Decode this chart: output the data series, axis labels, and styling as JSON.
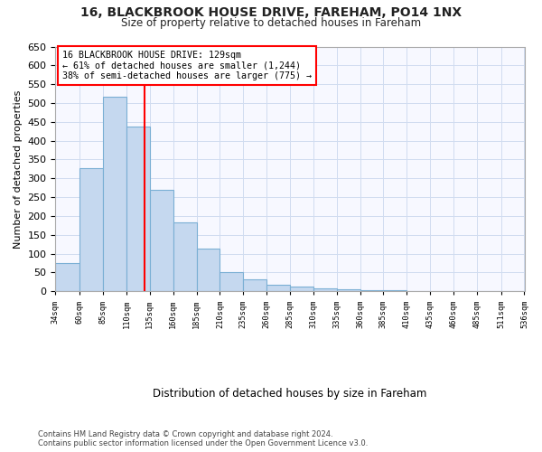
{
  "title1": "16, BLACKBROOK HOUSE DRIVE, FAREHAM, PO14 1NX",
  "title2": "Size of property relative to detached houses in Fareham",
  "xlabel": "Distribution of detached houses by size in Fareham",
  "ylabel": "Number of detached properties",
  "bins": [
    34,
    60,
    85,
    110,
    135,
    160,
    185,
    210,
    235,
    260,
    285,
    310,
    335,
    360,
    385,
    410,
    435,
    460,
    485,
    511,
    536
  ],
  "bar_heights": [
    75,
    328,
    517,
    438,
    270,
    182,
    113,
    50,
    33,
    18,
    13,
    8,
    5,
    3,
    2,
    1,
    1,
    1,
    1,
    1
  ],
  "tick_labels": [
    "34sqm",
    "60sqm",
    "85sqm",
    "110sqm",
    "135sqm",
    "160sqm",
    "185sqm",
    "210sqm",
    "235sqm",
    "260sqm",
    "285sqm",
    "310sqm",
    "335sqm",
    "360sqm",
    "385sqm",
    "410sqm",
    "435sqm",
    "460sqm",
    "485sqm",
    "511sqm",
    "536sqm"
  ],
  "tick_positions": [
    34,
    60,
    85,
    110,
    135,
    160,
    185,
    210,
    235,
    260,
    285,
    310,
    335,
    360,
    385,
    410,
    435,
    460,
    485,
    511,
    536
  ],
  "bar_color": "#c5d8ef",
  "bar_edge_color": "#7aafd4",
  "vline_x": 129,
  "vline_color": "red",
  "ylim": [
    0,
    650
  ],
  "xlim": [
    34,
    536
  ],
  "annotation_line1": "16 BLACKBROOK HOUSE DRIVE: 129sqm",
  "annotation_line2": "← 61% of detached houses are smaller (1,244)",
  "annotation_line3": "38% of semi-detached houses are larger (775) →",
  "box_color": "red",
  "footnote1": "Contains HM Land Registry data © Crown copyright and database right 2024.",
  "footnote2": "Contains public sector information licensed under the Open Government Licence v3.0.",
  "bg_color": "#ffffff",
  "plot_bg_color": "#f7f8ff",
  "grid_color": "#d0dcf0"
}
